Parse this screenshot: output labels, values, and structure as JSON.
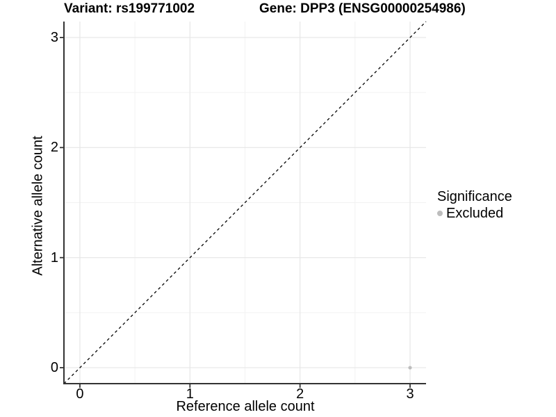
{
  "chart_data": {
    "type": "scatter",
    "title_left": "Variant: rs199771002",
    "title_right": "Gene: DPP3 (ENSG00000254986)",
    "xlabel": "Reference allele count",
    "ylabel": "Alternative allele count",
    "xlim": [
      -0.145,
      3.145
    ],
    "ylim": [
      -0.145,
      3.145
    ],
    "x_ticks": [
      0,
      1,
      2,
      3
    ],
    "y_ticks": [
      0,
      1,
      2,
      3
    ],
    "x_minor_ticks": [
      0.5,
      1.5,
      2.5
    ],
    "y_minor_ticks": [
      0.5,
      1.5,
      2.5
    ],
    "grid": true,
    "reference_line": {
      "type": "identity",
      "style": "dashed",
      "color": "#000000"
    },
    "series": [
      {
        "name": "Excluded",
        "color": "#bdbdbd",
        "points": [
          {
            "x": 3,
            "y": 0
          }
        ]
      }
    ],
    "legend": {
      "title": "Significance",
      "position": "right",
      "entries": [
        {
          "label": "Excluded",
          "color": "#bdbdbd"
        }
      ]
    }
  },
  "colors": {
    "background": "#ffffff",
    "grid_major": "#e6e6e6",
    "grid_minor": "#f2f2f2",
    "axis": "#333333",
    "text": "#000000"
  }
}
